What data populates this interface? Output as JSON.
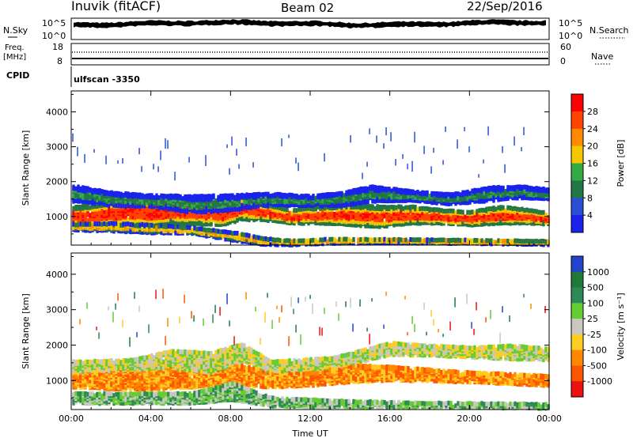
{
  "header": {
    "station": "Inuvik (fitACF)",
    "beam": "Beam 02",
    "date": "22/Sep/2016"
  },
  "noise_panel": {
    "left_label": "N.Sky",
    "right_label": "N.Search",
    "left_ticks": [
      "10^5",
      "10^0"
    ],
    "right_ticks": [
      "10^5",
      "10^0"
    ]
  },
  "freq_panel": {
    "left_label_1": "Freq.",
    "left_label_2": "[MHz]",
    "right_label": "Nave",
    "left_ticks": [
      "18",
      "8"
    ],
    "right_ticks": [
      "60",
      "0"
    ]
  },
  "cpid": {
    "label": "CPID",
    "value": "ulfscan -3350"
  },
  "chart_data": [
    {
      "type": "heatmap",
      "xlabel": "Time UT",
      "ylabel": "Slant Range [km]",
      "xlim": [
        "00:00",
        "24:00"
      ],
      "ylim": [
        180,
        4600
      ],
      "x_ticks": [
        "00:00",
        "04:00",
        "08:00",
        "12:00",
        "16:00",
        "20:00",
        "00:00"
      ],
      "y_ticks": [
        1000,
        2000,
        3000,
        4000
      ],
      "colorbar": {
        "label": "Power [dB]",
        "ticks": [
          "28",
          "24",
          "20",
          "16",
          "12",
          "8",
          "4"
        ],
        "colors": [
          "#ff0000",
          "#ff4400",
          "#ff8a00",
          "#f6c700",
          "#33aa44",
          "#227744",
          "#2a4fd6",
          "#1a22ee"
        ]
      },
      "bands": [
        {
          "name": "main",
          "points": [
            [
              0.3,
              1000,
              600
            ],
            [
              1.5,
              1050,
              700
            ],
            [
              3,
              1150,
              900
            ],
            [
              4,
              1100,
              800
            ],
            [
              5,
              1150,
              750
            ],
            [
              6,
              1150,
              750
            ],
            [
              7.5,
              1050,
              600
            ],
            [
              8.5,
              1250,
              700
            ],
            [
              9.5,
              1150,
              500
            ],
            [
              11,
              1000,
              400
            ],
            [
              12.5,
              1050,
              500
            ],
            [
              14,
              1050,
              600
            ],
            [
              15.5,
              1000,
              600
            ],
            [
              17,
              1050,
              500
            ],
            [
              18.5,
              1000,
              400
            ],
            [
              20,
              950,
              400
            ],
            [
              21.5,
              1050,
              500
            ],
            [
              23,
              1000,
              400
            ],
            [
              23.8,
              950,
              350
            ]
          ],
          "color_index": 1
        },
        {
          "name": "upper",
          "points": [
            [
              0.3,
              1650,
              450
            ],
            [
              2,
              1500,
              400
            ],
            [
              4,
              1450,
              350
            ],
            [
              6,
              1350,
              500
            ],
            [
              8,
              1400,
              450
            ],
            [
              10,
              1500,
              350
            ],
            [
              12,
              1450,
              300
            ],
            [
              13.5,
              1500,
              400
            ],
            [
              15,
              1650,
              450
            ],
            [
              17,
              1600,
              300
            ],
            [
              19,
              1500,
              300
            ],
            [
              21,
              1650,
              400
            ],
            [
              22.5,
              1700,
              350
            ],
            [
              23.8,
              1650,
              300
            ]
          ],
          "color_index": 5
        },
        {
          "name": "low-red",
          "points": [
            [
              0.3,
              700,
              200
            ],
            [
              2,
              700,
              250
            ],
            [
              4,
              650,
              250
            ],
            [
              6,
              600,
              200
            ],
            [
              8.5,
              400,
              250
            ],
            [
              9.5,
              300,
              200
            ],
            [
              11,
              250,
              150
            ],
            [
              13,
              300,
              150
            ],
            [
              16,
              300,
              120
            ],
            [
              20,
              280,
              120
            ],
            [
              23.8,
              250,
              120
            ]
          ],
          "color_index": 3
        }
      ]
    },
    {
      "type": "heatmap",
      "xlabel": "Time UT",
      "ylabel": "Slant Range [km]",
      "xlim": [
        "00:00",
        "24:00"
      ],
      "ylim": [
        180,
        4600
      ],
      "x_ticks": [
        "00:00",
        "04:00",
        "08:00",
        "12:00",
        "16:00",
        "20:00",
        "00:00"
      ],
      "y_ticks": [
        1000,
        2000,
        3000,
        4000
      ],
      "colorbar": {
        "label": "Velocity [m s⁻¹]",
        "ticks": [
          "1000",
          "500",
          "100",
          "25",
          "-25",
          "-100",
          "-500",
          "-1000"
        ],
        "colors": [
          "#2244cc",
          "#1f7a3a",
          "#2d8a56",
          "#66cc33",
          "#c8c8c0",
          "#ffcc22",
          "#ff8800",
          "#ff5500",
          "#ee1111"
        ]
      },
      "bands": [
        {
          "name": "main",
          "points": [
            [
              0.3,
              1100,
              600
            ],
            [
              2,
              1100,
              700
            ],
            [
              4,
              1150,
              800
            ],
            [
              6,
              1150,
              700
            ],
            [
              8,
              1200,
              600
            ],
            [
              10,
              1050,
              500
            ],
            [
              12,
              1050,
              400
            ],
            [
              14,
              1200,
              500
            ],
            [
              16,
              1200,
              400
            ],
            [
              18,
              1150,
              350
            ],
            [
              20,
              1100,
              300
            ],
            [
              22,
              1050,
              300
            ],
            [
              23.8,
              1000,
              300
            ]
          ],
          "color_index": 6
        },
        {
          "name": "upper",
          "points": [
            [
              0.3,
              1400,
              300
            ],
            [
              3,
              1450,
              300
            ],
            [
              5,
              1600,
              500
            ],
            [
              7,
              1500,
              600
            ],
            [
              8.5,
              1800,
              500
            ],
            [
              10,
              1400,
              300
            ],
            [
              13,
              1500,
              300
            ],
            [
              16,
              1900,
              350
            ],
            [
              18,
              1850,
              300
            ],
            [
              20,
              1800,
              300
            ],
            [
              22,
              1800,
              400
            ],
            [
              23.8,
              1750,
              350
            ]
          ],
          "color_index": 4
        },
        {
          "name": "low",
          "points": [
            [
              0.3,
              500,
              300
            ],
            [
              3,
              500,
              300
            ],
            [
              6,
              500,
              300
            ],
            [
              8,
              700,
              500
            ],
            [
              10,
              400,
              250
            ],
            [
              13,
              350,
              200
            ],
            [
              17,
              320,
              150
            ],
            [
              21,
              300,
              150
            ],
            [
              23.8,
              280,
              150
            ]
          ],
          "color_index": 3
        }
      ]
    }
  ],
  "colors": {
    "frame": "#000000"
  }
}
